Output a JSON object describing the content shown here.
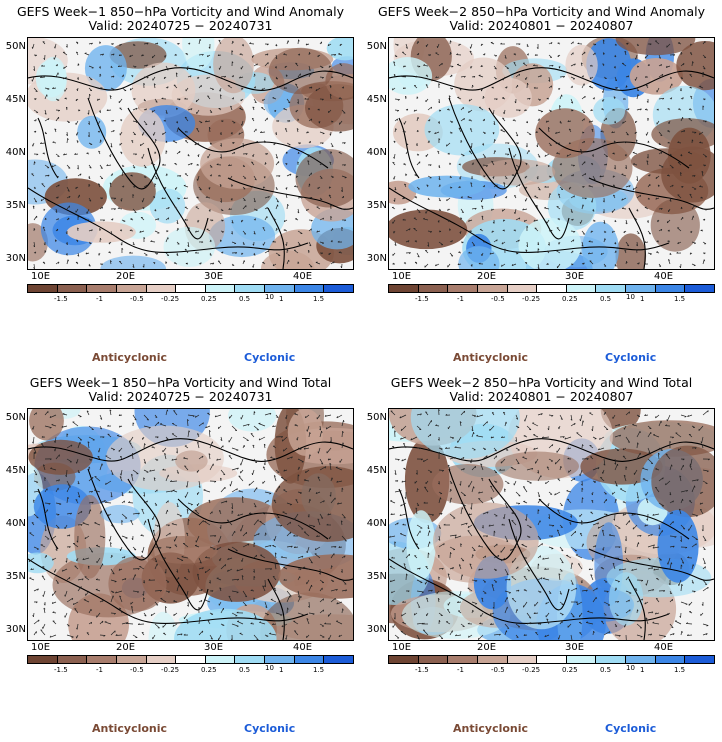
{
  "panels": [
    {
      "title": "GEFS Week−1 850−hPa Vorticity and Wind Anomaly",
      "valid": "Valid: 20240725 − 20240731"
    },
    {
      "title": "GEFS Week−2 850−hPa Vorticity and Wind Anomaly",
      "valid": "Valid: 20240801 − 20240807"
    },
    {
      "title": "GEFS Week−1 850−hPa Vorticity and Wind Total",
      "valid": "Valid: 20240725 − 20240731"
    },
    {
      "title": "GEFS Week−2 850−hPa Vorticity and Wind Total",
      "valid": "Valid: 20240801 − 20240807"
    }
  ],
  "lat_labels": [
    "50N",
    "45N",
    "40N",
    "35N",
    "30N"
  ],
  "lon_labels": [
    "10E",
    "20E",
    "30E",
    "40E"
  ],
  "colorbar": {
    "labels": [
      "-1.5",
      "-1",
      "-0.5",
      "-0.25",
      "0.25",
      "0.5",
      "1",
      "1.5"
    ],
    "unit": "10",
    "colors": [
      "#6e4433",
      "#8b6050",
      "#a87d6d",
      "#c8a596",
      "#e6cfc6",
      "#ffffff",
      "#cdf3f8",
      "#9fdcf4",
      "#6fb3ee",
      "#3c86e6",
      "#1c5cd8"
    ]
  },
  "legend": {
    "anticyclonic": "Anticyclonic",
    "cyclonic": "Cyclonic"
  },
  "colors": {
    "anticyclonic": "#7a4a35",
    "cyclonic": "#1c5cd8",
    "land_outline": "#000000",
    "arrow": "#222222"
  }
}
